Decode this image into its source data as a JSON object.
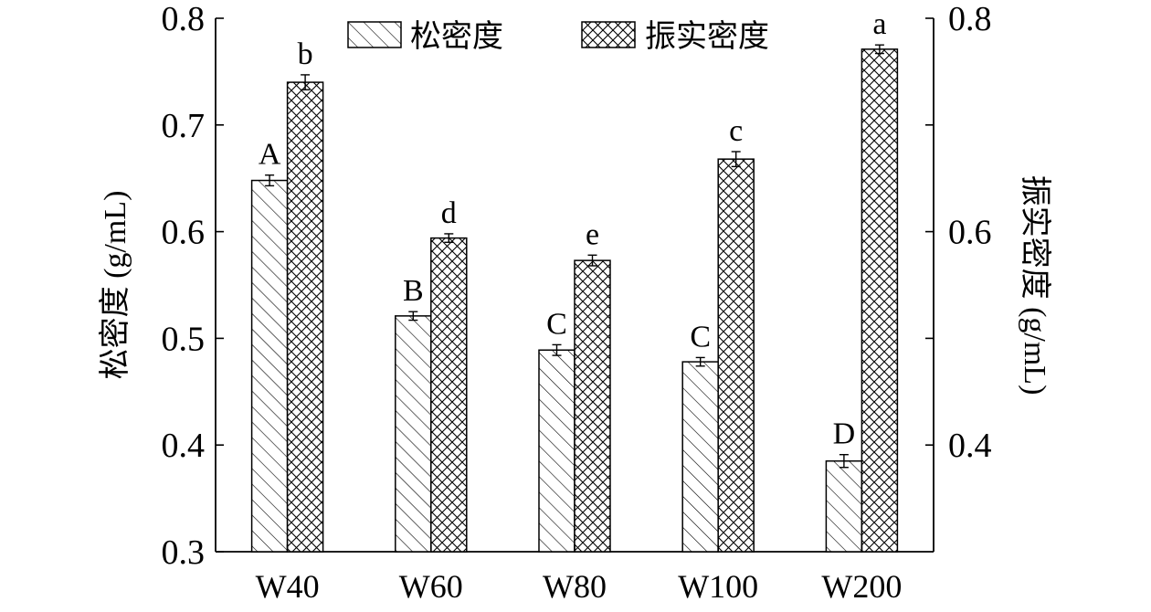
{
  "chart_data": {
    "type": "bar",
    "categories": [
      "W40",
      "W60",
      "W80",
      "W100",
      "W200"
    ],
    "series": [
      {
        "name": "松密度",
        "axis": "left",
        "pattern": "diagonal-hatch",
        "values": [
          0.648,
          0.521,
          0.489,
          0.478,
          0.385
        ],
        "errors": [
          0.005,
          0.004,
          0.005,
          0.004,
          0.006
        ],
        "labels": [
          "A",
          "B",
          "C",
          "C",
          "D"
        ]
      },
      {
        "name": "振实密度",
        "axis": "right",
        "pattern": "crosshatch",
        "values": [
          0.74,
          0.594,
          0.573,
          0.668,
          0.771
        ],
        "errors": [
          0.007,
          0.004,
          0.005,
          0.007,
          0.004
        ],
        "labels": [
          "b",
          "d",
          "e",
          "c",
          "a"
        ]
      }
    ],
    "ylabel_left": "松密度 (g/mL)",
    "ylabel_right": "振实密度 (g/mL)",
    "ylim": [
      0.3,
      0.8
    ],
    "yticks_left": [
      "0.3",
      "0.4",
      "0.5",
      "0.6",
      "0.7",
      "0.8"
    ],
    "yticks_right": [
      "0.4",
      "0.6",
      "0.8"
    ],
    "legend_position": "top-center",
    "grid": false,
    "colors": {
      "line": "#000000",
      "background": "#ffffff"
    }
  }
}
